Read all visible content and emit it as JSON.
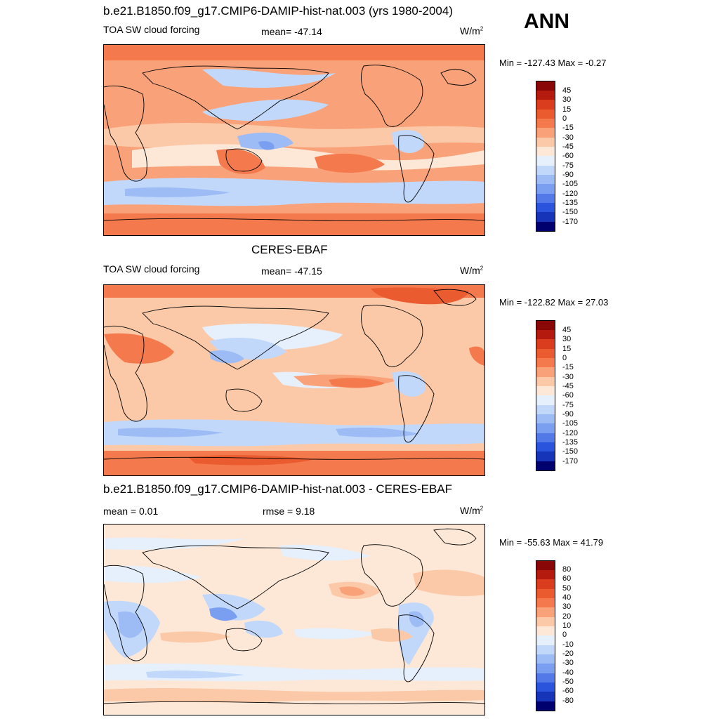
{
  "header": {
    "season": "ANN"
  },
  "colors": {
    "warm": [
      "#fde7d6",
      "#fcc9a8",
      "#f9a27a",
      "#f47a4e",
      "#eb5b30",
      "#d93d1e",
      "#b51a0f",
      "#8a0707"
    ],
    "cool": [
      "#e6f0fc",
      "#c2d8fa",
      "#9dbcf6",
      "#7a9ef0",
      "#5279e7",
      "#2b54dc",
      "#1634b8",
      "#0a1d8c",
      "#00006e"
    ],
    "ocean_bg": "#fde7d6"
  },
  "panels": [
    {
      "title": "b.e21.B1850.f09_g17.CMIP6-DAMIP-hist-nat.003 (yrs 1980-2004)",
      "left_label": "TOA SW cloud forcing",
      "center_label": "mean= -47.14",
      "units": "W/m",
      "units_exp": "2",
      "minmax": "Min = -127.43 Max =  -0.27",
      "colorbar_levels": [
        "45",
        "30",
        "15",
        "0",
        "-15",
        "-30",
        "-45",
        "-60",
        "-75",
        "-90",
        "-105",
        "-120",
        "-135",
        "-150",
        "-170"
      ]
    },
    {
      "title": "CERES-EBAF",
      "left_label": "TOA SW cloud forcing",
      "center_label": "mean= -47.15",
      "units": "W/m",
      "units_exp": "2",
      "minmax": "Min = -122.82 Max =  27.03",
      "colorbar_levels": [
        "45",
        "30",
        "15",
        "0",
        "-15",
        "-30",
        "-45",
        "-60",
        "-75",
        "-90",
        "-105",
        "-120",
        "-135",
        "-150",
        "-170"
      ]
    },
    {
      "title": "b.e21.B1850.f09_g17.CMIP6-DAMIP-hist-nat.003 - CERES-EBAF",
      "left_label": "mean =   0.01",
      "center_label": "rmse =   9.18",
      "units": "W/m",
      "units_exp": "2",
      "minmax": "Min = -55.63 Max =  41.79",
      "colorbar_levels": [
        "80",
        "60",
        "50",
        "40",
        "30",
        "20",
        "10",
        "0",
        "-10",
        "-20",
        "-30",
        "-40",
        "-50",
        "-60",
        "-80"
      ]
    }
  ],
  "chart_data": [
    {
      "type": "heatmap",
      "title": "b.e21.B1850.f09_g17.CMIP6-DAMIP-hist-nat.003 (yrs 1980-2004)",
      "variable": "TOA SW cloud forcing",
      "mean": -47.14,
      "min": -127.43,
      "max": -0.27,
      "units": "W/m2",
      "color_levels": [
        45,
        30,
        15,
        0,
        -15,
        -30,
        -45,
        -60,
        -75,
        -90,
        -105,
        -120,
        -135,
        -150,
        -170
      ]
    },
    {
      "type": "heatmap",
      "title": "CERES-EBAF",
      "variable": "TOA SW cloud forcing",
      "mean": -47.15,
      "min": -122.82,
      "max": 27.03,
      "units": "W/m2",
      "color_levels": [
        45,
        30,
        15,
        0,
        -15,
        -30,
        -45,
        -60,
        -75,
        -90,
        -105,
        -120,
        -135,
        -150,
        -170
      ]
    },
    {
      "type": "heatmap",
      "title": "b.e21.B1850.f09_g17.CMIP6-DAMIP-hist-nat.003 - CERES-EBAF",
      "mean": 0.01,
      "rmse": 9.18,
      "min": -55.63,
      "max": 41.79,
      "units": "W/m2",
      "color_levels": [
        80,
        60,
        50,
        40,
        30,
        20,
        10,
        0,
        -10,
        -20,
        -30,
        -40,
        -50,
        -60,
        -80
      ]
    }
  ]
}
